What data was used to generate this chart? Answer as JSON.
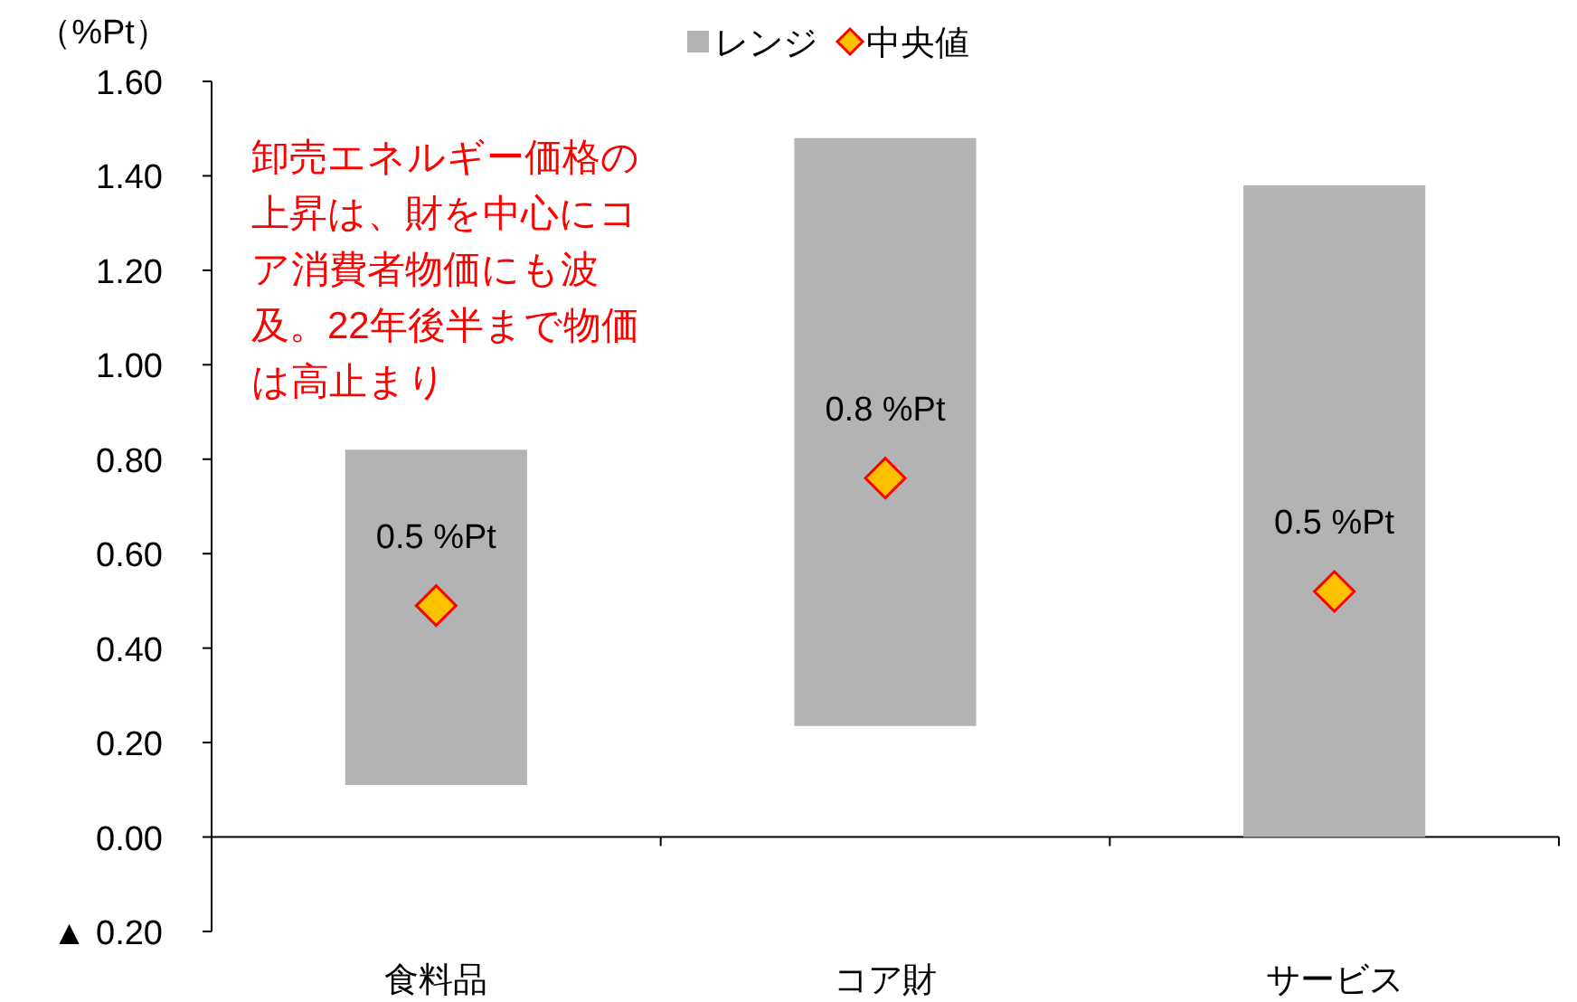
{
  "chart_data": {
    "type": "bar",
    "ylabel": "（%Pt）",
    "categories": [
      "食料品",
      "コア財",
      "サービス"
    ],
    "series": [
      {
        "name": "レンジ",
        "color": "#b3b3b3",
        "base": [
          0.11,
          0.235,
          0
        ],
        "values": [
          0.71,
          1.245,
          1.38
        ]
      },
      {
        "name": "中央値",
        "type": "scatter",
        "marker": "diamond",
        "color": "#ffc000",
        "values": [
          0.49,
          0.76,
          0.52
        ],
        "value_labels": [
          "0.5 %Pt",
          "0.8 %Pt",
          "0.5 %Pt"
        ]
      }
    ],
    "ylim": [
      -0.2,
      1.6
    ],
    "yticks": [
      {
        "value": -0.2,
        "label": "▲ 0.20"
      },
      {
        "value": 0,
        "label": "0.00"
      },
      {
        "value": 0.2,
        "label": "0.20"
      },
      {
        "value": 0.4,
        "label": "0.40"
      },
      {
        "value": 0.6,
        "label": "0.60"
      },
      {
        "value": 0.8,
        "label": "0.80"
      },
      {
        "value": 1.0,
        "label": "1.00"
      },
      {
        "value": 1.2,
        "label": "1.20"
      },
      {
        "value": 1.4,
        "label": "1.40"
      },
      {
        "value": 1.6,
        "label": "1.60"
      }
    ],
    "legend": "top",
    "annotations": [
      "卸売エネルギー価格の上昇は、財を中心にコア消費者物価にも波及。22年後半まで物価は高止まり"
    ]
  }
}
